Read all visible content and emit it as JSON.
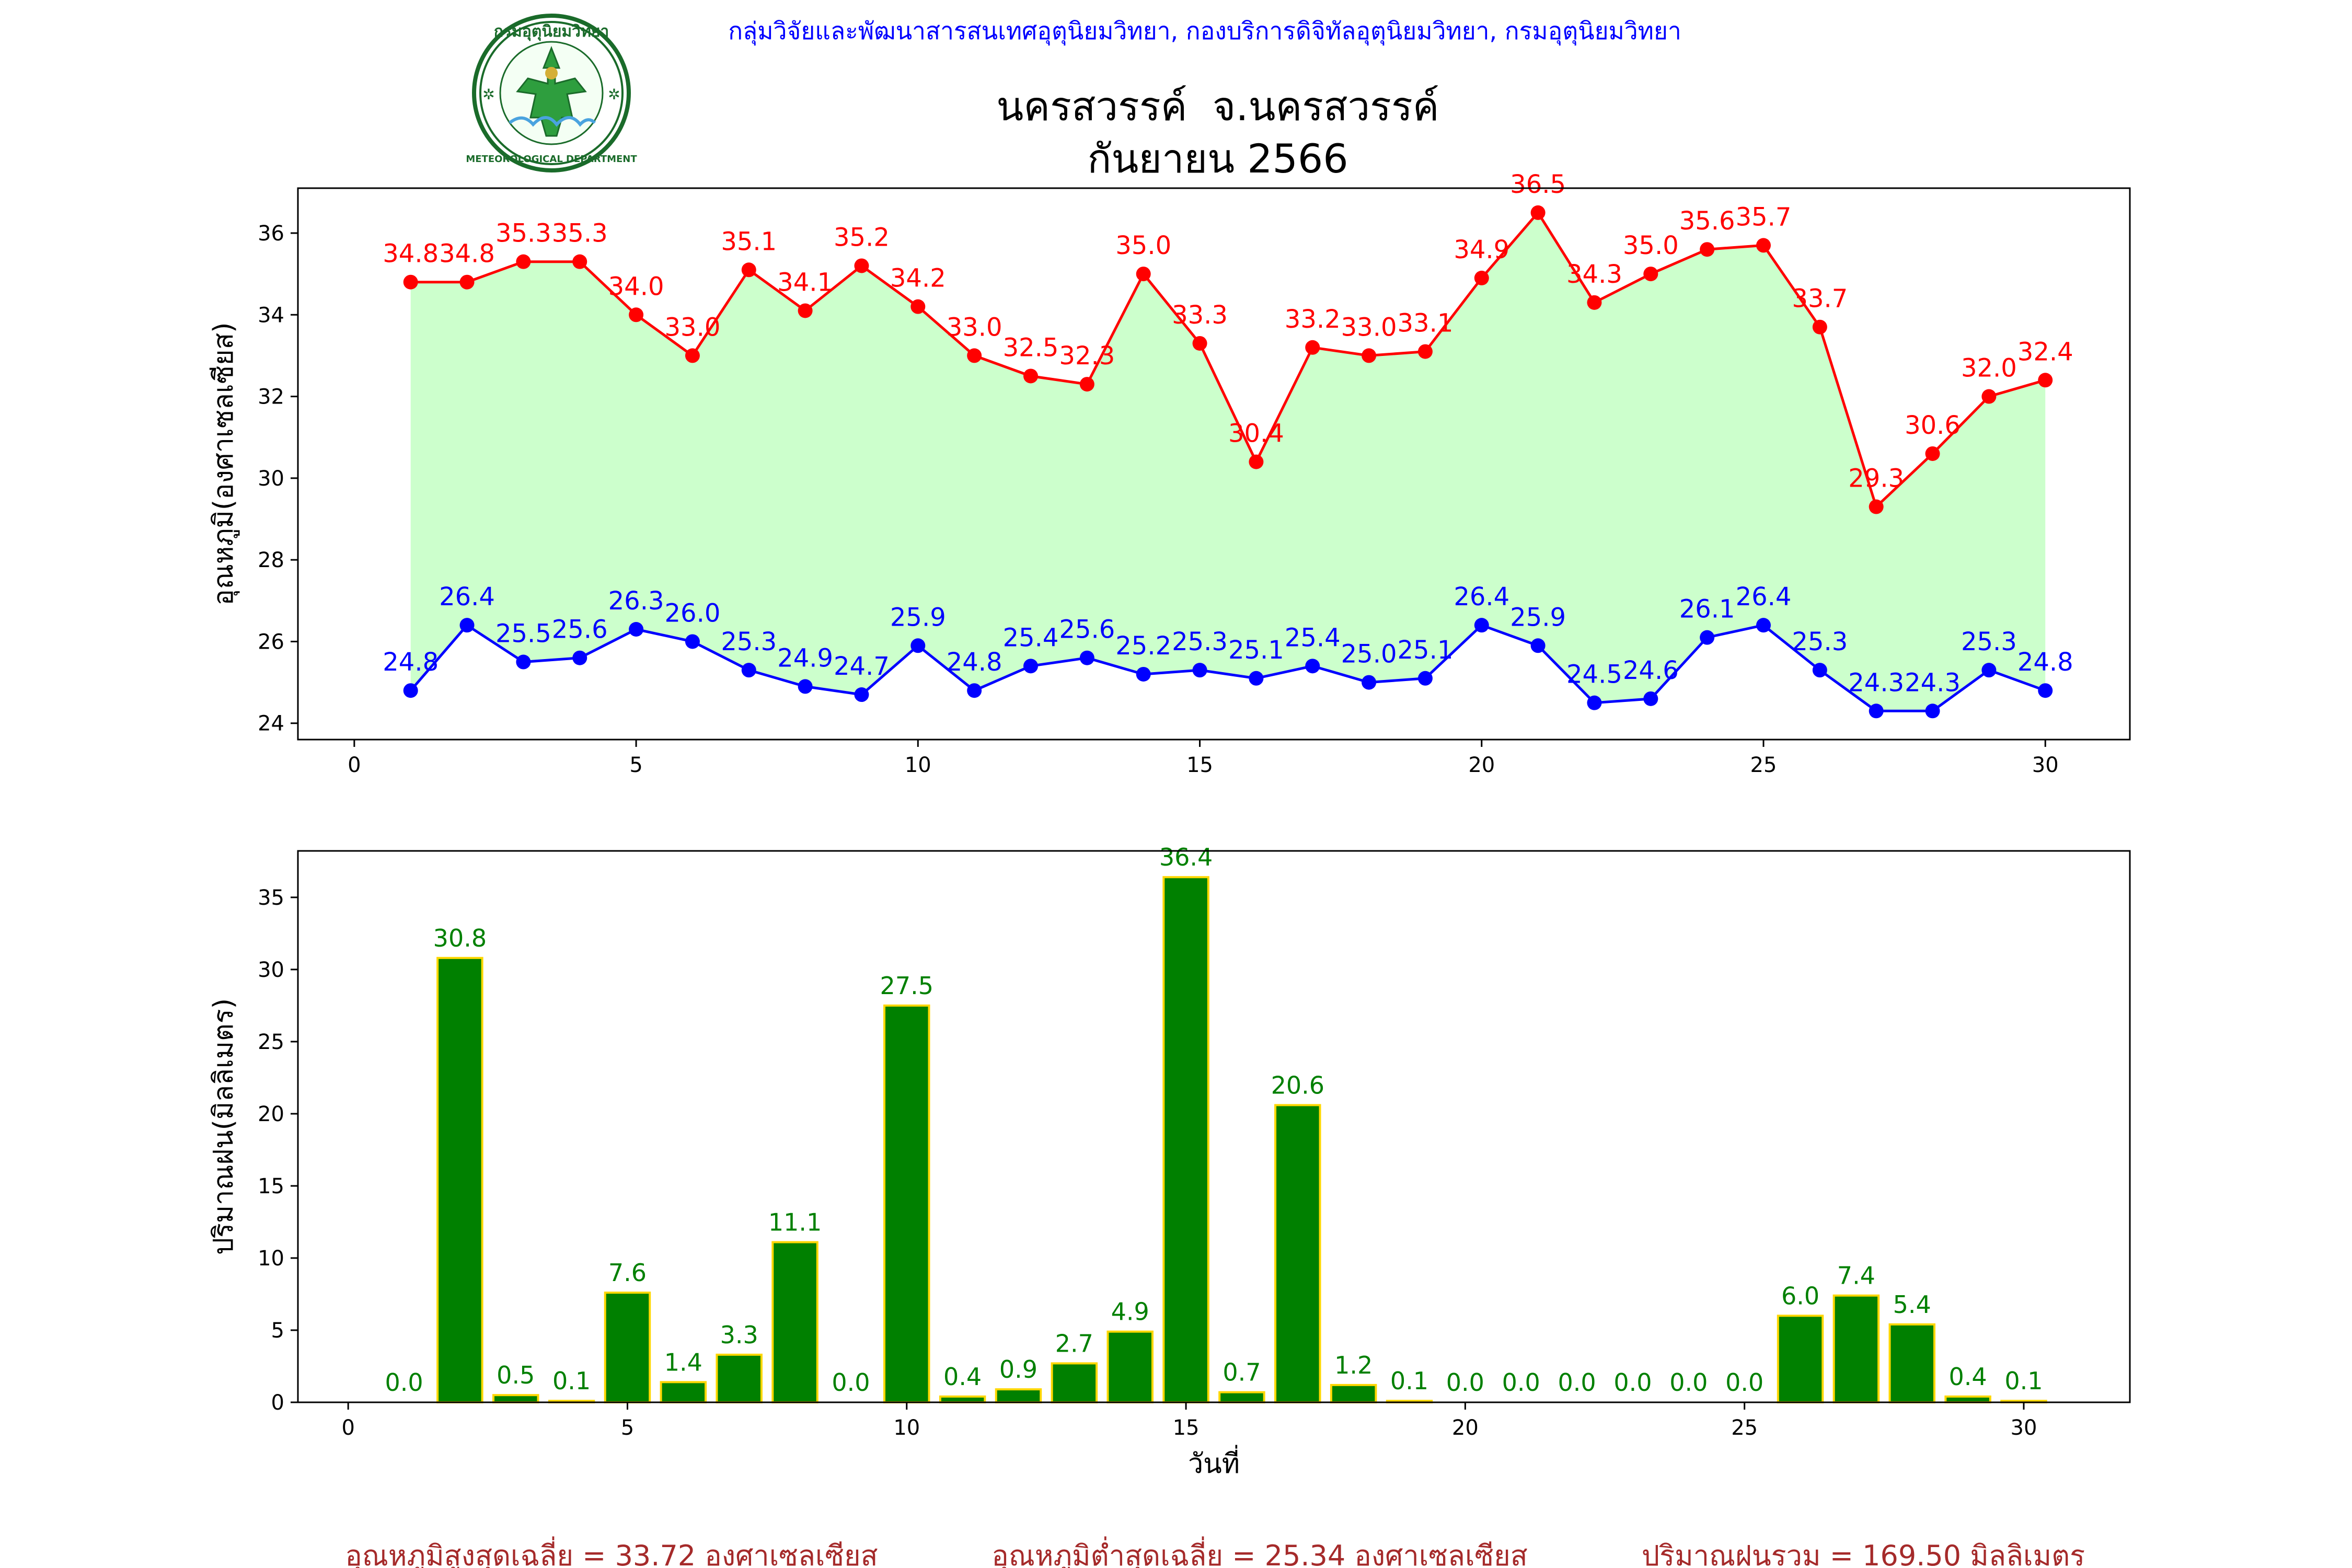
{
  "header": {
    "organization": "กลุ่มวิจัยและพัฒนาสารสนเทศอุตุนิยมวิทยา, กองบริการดิจิทัลอุตุนิยมวิทยา, กรมอุตุนิยมวิทยา",
    "title_line1": "นครสวรรค์  จ.นครสวรรค์",
    "title_line2": "กันยายน 2566",
    "logo_text_top": "กรมอุตุนิยมวิทยา",
    "logo_text_bottom": "METEOROLOGICAL DEPARTMENT"
  },
  "colors": {
    "max_line": "#ff0000",
    "min_line": "#0000ff",
    "fill": "#ccffcc",
    "bar_fill": "#008000",
    "bar_edge": "#ffd700",
    "bar_label": "#008000",
    "header_text": "#0000ff",
    "summary_text": "#a52a2a"
  },
  "chart_data": [
    {
      "type": "line",
      "ylabel": "อุณหภูมิ(องศาเซลเซียส)",
      "xlim": [
        -1,
        31.5
      ],
      "ylim": [
        23.6,
        37.1
      ],
      "xticks": [
        0,
        5,
        10,
        15,
        20,
        25,
        30
      ],
      "yticks": [
        24,
        26,
        28,
        30,
        32,
        34,
        36
      ],
      "x": [
        1,
        2,
        3,
        4,
        5,
        6,
        7,
        8,
        9,
        10,
        11,
        12,
        13,
        14,
        15,
        16,
        17,
        18,
        19,
        20,
        21,
        22,
        23,
        24,
        25,
        26,
        27,
        28,
        29,
        30
      ],
      "series": [
        {
          "values": [
            34.8,
            34.8,
            35.3,
            35.3,
            34.0,
            33.0,
            35.1,
            34.1,
            35.2,
            34.2,
            33.0,
            32.5,
            32.3,
            35.0,
            33.3,
            30.4,
            33.2,
            33.0,
            33.1,
            34.9,
            36.5,
            34.3,
            35.0,
            35.6,
            35.7,
            33.7,
            29.3,
            30.6,
            32.0,
            32.4
          ]
        },
        {
          "values": [
            24.8,
            26.4,
            25.5,
            25.6,
            26.3,
            26.0,
            25.3,
            24.9,
            24.7,
            25.9,
            24.8,
            25.4,
            25.6,
            25.2,
            25.3,
            25.1,
            25.4,
            25.0,
            25.1,
            26.4,
            25.9,
            24.5,
            24.6,
            26.1,
            26.4,
            25.3,
            24.3,
            24.3,
            25.3,
            24.8
          ]
        }
      ]
    },
    {
      "type": "bar",
      "xlabel": "วันที่",
      "ylabel": "ปริมาณฝน(มิลลิเมตร)",
      "xlim": [
        -0.9,
        31.9
      ],
      "ylim": [
        0,
        38.22
      ],
      "xticks": [
        0,
        5,
        10,
        15,
        20,
        25,
        30
      ],
      "yticks": [
        0,
        5,
        10,
        15,
        20,
        25,
        30,
        35
      ],
      "x": [
        1,
        2,
        3,
        4,
        5,
        6,
        7,
        8,
        9,
        10,
        11,
        12,
        13,
        14,
        15,
        16,
        17,
        18,
        19,
        20,
        21,
        22,
        23,
        24,
        25,
        26,
        27,
        28,
        29,
        30
      ],
      "values": [
        0.0,
        30.8,
        0.5,
        0.1,
        7.6,
        1.4,
        3.3,
        11.1,
        0.0,
        27.5,
        0.4,
        0.9,
        2.7,
        4.9,
        36.4,
        0.7,
        20.6,
        1.2,
        0.1,
        0.0,
        0.0,
        0.0,
        0.0,
        0.0,
        0.0,
        6.0,
        7.4,
        5.4,
        0.4,
        0.1
      ]
    }
  ],
  "summary": {
    "avg_max": "อุณหภูมิสูงสุดเฉลี่ย = 33.72 องศาเซลเซียส",
    "avg_min": "อุณหภูมิต่ำสุดเฉลี่ย = 25.34 องศาเซลเซียส",
    "total_rain": "ปริมาณฝนรวม = 169.50 มิลลิเมตร"
  }
}
